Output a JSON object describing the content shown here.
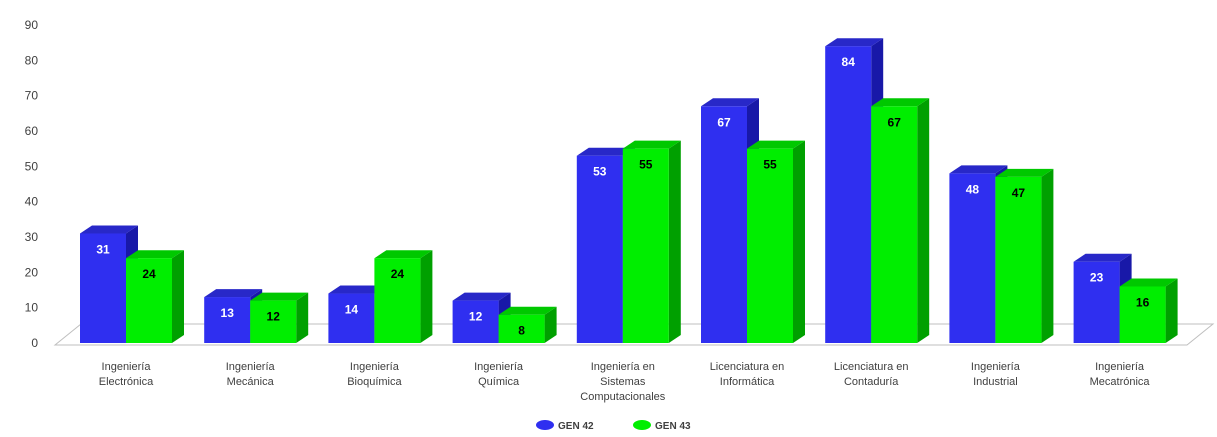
{
  "chart_data": {
    "type": "bar",
    "categories": [
      "Ingeniería Electrónica",
      "Ingeniería Mecánica",
      "Ingeniería Bioquímica",
      "Ingeniería Química",
      "Ingeniería en Sistemas Computacionales",
      "Licenciatura en Informática",
      "Licenciatura en Contaduría",
      "Ingeniería Industrial",
      "Ingeniería Mecatrónica"
    ],
    "category_lines": [
      [
        "Ingeniería",
        "Electrónica"
      ],
      [
        "Ingeniería",
        "Mecánica"
      ],
      [
        "Ingeniería",
        "Bioquímica"
      ],
      [
        "Ingeniería",
        "Química"
      ],
      [
        "Ingeniería en",
        "Sistemas",
        "Computacionales"
      ],
      [
        "Licenciatura en",
        "Informática"
      ],
      [
        "Licenciatura en",
        "Contaduría"
      ],
      [
        "Ingeniería",
        "Industrial"
      ],
      [
        "Ingeniería",
        "Mecatrónica"
      ]
    ],
    "series": [
      {
        "name": "GEN 42",
        "values": [
          31,
          13,
          14,
          12,
          53,
          67,
          84,
          48,
          23
        ],
        "color": "#2f2ff0",
        "side_color": "#1818a8",
        "top_color": "#2828c8",
        "label_color": "#ffffff"
      },
      {
        "name": "GEN 43",
        "values": [
          24,
          12,
          24,
          8,
          55,
          55,
          67,
          47,
          16
        ],
        "color": "#00ee00",
        "side_color": "#00a000",
        "top_color": "#00c800",
        "label_color": "#000000"
      }
    ],
    "yticks": [
      0,
      10,
      20,
      30,
      40,
      50,
      60,
      70,
      80,
      90
    ],
    "ylim": [
      0,
      90
    ],
    "title": "",
    "xlabel": "",
    "ylabel": "",
    "legend_position": "bottom",
    "grid": false,
    "style": "3d-clustered-column"
  }
}
